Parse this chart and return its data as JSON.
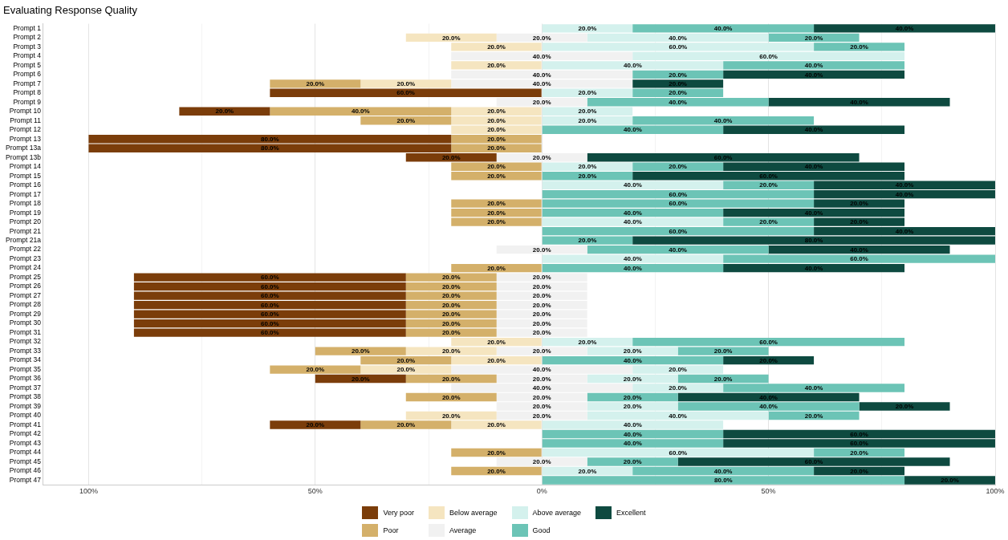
{
  "chart_data": {
    "type": "bar",
    "title": "Evaluating Response Quality",
    "orientation": "horizontal",
    "legend": "bottom",
    "grid": "x",
    "categories": [
      "Prompt 1",
      "Prompt 2",
      "Prompt 3",
      "Prompt 4",
      "Prompt 5",
      "Prompt 6",
      "Prompt 7",
      "Prompt 8",
      "Prompt 9",
      "Prompt 10",
      "Prompt 11",
      "Prompt 12",
      "Prompt 13",
      "Prompt 13a",
      "Prompt 13b",
      "Prompt 14",
      "Prompt 15",
      "Prompt 16",
      "Prompt 17",
      "Prompt 18",
      "Prompt 19",
      "Prompt 20",
      "Prompt 21",
      "Prompt 21a",
      "Prompt 22",
      "Prompt 23",
      "Prompt 24",
      "Prompt 25",
      "Prompt 26",
      "Prompt 27",
      "Prompt 28",
      "Prompt 29",
      "Prompt 30",
      "Prompt 31",
      "Prompt 32",
      "Prompt 33",
      "Prompt 34",
      "Prompt 35",
      "Prompt 36",
      "Prompt 37",
      "Prompt 38",
      "Prompt 39",
      "Prompt 40",
      "Prompt 41",
      "Prompt 42",
      "Prompt 43",
      "Prompt 44",
      "Prompt 45",
      "Prompt 46",
      "Prompt 47"
    ],
    "xlim": [
      -110,
      100
    ],
    "xticks": [
      {
        "value": -100,
        "label": "100%"
      },
      {
        "value": -75,
        "label": null
      },
      {
        "value": -50,
        "label": "50%"
      },
      {
        "value": -25,
        "label": null
      },
      {
        "value": 0,
        "label": "0%"
      },
      {
        "value": 25,
        "label": null
      },
      {
        "value": 50,
        "label": "50%"
      },
      {
        "value": 75,
        "label": null
      },
      {
        "value": 100,
        "label": "100%"
      }
    ],
    "series": [
      {
        "name": "Very poor",
        "color": "#7b3d0a",
        "values": [
          null,
          null,
          null,
          null,
          null,
          null,
          null,
          60,
          null,
          20,
          null,
          null,
          80,
          80,
          20,
          null,
          null,
          null,
          null,
          null,
          null,
          null,
          null,
          null,
          null,
          null,
          null,
          60,
          60,
          60,
          60,
          60,
          60,
          60,
          null,
          null,
          null,
          null,
          20,
          null,
          null,
          null,
          null,
          20,
          null,
          null,
          null,
          null,
          null,
          null
        ],
        "base": [
          null,
          null,
          null,
          null,
          null,
          null,
          null,
          -60,
          null,
          -80,
          null,
          null,
          -100,
          -100,
          -30,
          null,
          null,
          null,
          null,
          null,
          null,
          null,
          null,
          null,
          null,
          null,
          null,
          -90,
          -90,
          -90,
          -90,
          -90,
          -90,
          -90,
          null,
          null,
          null,
          null,
          -50,
          null,
          null,
          null,
          null,
          -60,
          null,
          null,
          null,
          null,
          null,
          null
        ],
        "value_labels": [
          null,
          null,
          null,
          null,
          null,
          null,
          null,
          "60.0%",
          null,
          "20.0%",
          null,
          null,
          "80.0%",
          "80.0%",
          "20.0%",
          null,
          null,
          null,
          null,
          null,
          null,
          null,
          null,
          null,
          null,
          null,
          null,
          "60.0%",
          "60.0%",
          "60.0%",
          "60.0%",
          "60.0%",
          "60.0%",
          "60.0%",
          null,
          null,
          null,
          null,
          "20.0%",
          null,
          null,
          null,
          null,
          "20.0%",
          null,
          null,
          null,
          null,
          null,
          null
        ]
      },
      {
        "name": "Poor",
        "color": "#d4b06a",
        "values": [
          null,
          null,
          null,
          null,
          null,
          null,
          20,
          null,
          null,
          40,
          20,
          null,
          20,
          20,
          null,
          20,
          20,
          null,
          null,
          20,
          20,
          20,
          null,
          null,
          null,
          null,
          20,
          20,
          20,
          20,
          20,
          20,
          20,
          20,
          null,
          20,
          20,
          20,
          20,
          null,
          20,
          null,
          null,
          20,
          null,
          null,
          20,
          null,
          20,
          null
        ],
        "base": [
          null,
          null,
          null,
          null,
          null,
          null,
          -60,
          null,
          null,
          -60,
          -40,
          null,
          -20,
          -20,
          null,
          -20,
          -20,
          null,
          null,
          -20,
          -20,
          -20,
          null,
          null,
          null,
          null,
          -20,
          -30,
          -30,
          -30,
          -30,
          -30,
          -30,
          -30,
          null,
          -50,
          -40,
          -60,
          -30,
          null,
          -30,
          null,
          null,
          -40,
          null,
          null,
          -20,
          null,
          -20,
          null
        ],
        "value_labels": [
          null,
          null,
          null,
          null,
          null,
          null,
          "20.0%",
          null,
          null,
          "40.0%",
          "20.0%",
          null,
          "20.0%",
          "20.0%",
          null,
          "20.0%",
          "20.0%",
          null,
          null,
          "20.0%",
          "20.0%",
          "20.0%",
          null,
          null,
          null,
          null,
          "20.0%",
          "20.0%",
          "20.0%",
          "20.0%",
          "20.0%",
          "20.0%",
          "20.0%",
          "20.0%",
          null,
          "20.0%",
          "20.0%",
          "20.0%",
          "20.0%",
          null,
          "20.0%",
          null,
          null,
          "20.0%",
          null,
          null,
          "20.0%",
          null,
          "20.0%",
          null
        ]
      },
      {
        "name": "Below average",
        "color": "#f5e5c0",
        "values": [
          null,
          20,
          20,
          null,
          20,
          null,
          20,
          null,
          null,
          20,
          20,
          20,
          null,
          null,
          null,
          null,
          null,
          null,
          null,
          null,
          null,
          null,
          null,
          null,
          null,
          null,
          null,
          null,
          null,
          null,
          null,
          null,
          null,
          null,
          20,
          20,
          20,
          20,
          null,
          null,
          null,
          null,
          20,
          20,
          null,
          null,
          null,
          null,
          null,
          null
        ],
        "base": [
          null,
          -30,
          -20,
          null,
          -20,
          null,
          -40,
          null,
          null,
          -20,
          -20,
          -20,
          null,
          null,
          null,
          null,
          null,
          null,
          null,
          null,
          null,
          null,
          null,
          null,
          null,
          null,
          null,
          null,
          null,
          null,
          null,
          null,
          null,
          null,
          -20,
          -30,
          -20,
          -40,
          null,
          null,
          null,
          null,
          -30,
          -20,
          null,
          null,
          null,
          null,
          null,
          null
        ],
        "value_labels": [
          null,
          "20.0%",
          "20.0%",
          null,
          "20.0%",
          null,
          "20.0%",
          null,
          null,
          "20.0%",
          "20.0%",
          "20.0%",
          null,
          null,
          null,
          null,
          null,
          null,
          null,
          null,
          null,
          null,
          null,
          null,
          null,
          null,
          null,
          null,
          null,
          null,
          null,
          null,
          null,
          null,
          "20.0%",
          "20.0%",
          "20.0%",
          "20.0%",
          null,
          null,
          null,
          null,
          "20.0%",
          "20.0%",
          null,
          null,
          null,
          null,
          null,
          null
        ]
      },
      {
        "name": "Average",
        "color": "#f1f1f1",
        "values": [
          null,
          20,
          null,
          40,
          null,
          40,
          40,
          null,
          20,
          null,
          null,
          null,
          null,
          null,
          20,
          null,
          null,
          null,
          null,
          null,
          null,
          null,
          null,
          null,
          20,
          null,
          null,
          20,
          20,
          20,
          20,
          20,
          20,
          20,
          null,
          20,
          null,
          40,
          20,
          40,
          20,
          20,
          20,
          null,
          null,
          null,
          null,
          20,
          null,
          null
        ],
        "base": [
          null,
          -10,
          null,
          -20,
          null,
          -20,
          -20,
          null,
          -10,
          null,
          null,
          null,
          null,
          null,
          -10,
          null,
          null,
          null,
          null,
          null,
          null,
          null,
          null,
          null,
          -10,
          null,
          null,
          -10,
          -10,
          -10,
          -10,
          -10,
          -10,
          -10,
          null,
          -10,
          null,
          -20,
          -10,
          -20,
          -10,
          -10,
          -10,
          null,
          null,
          null,
          null,
          -10,
          null,
          null
        ],
        "value_labels": [
          null,
          "20.0%",
          null,
          "40.0%",
          null,
          "40.0%",
          "40.0%",
          null,
          "20.0%",
          null,
          null,
          null,
          null,
          null,
          "20.0%",
          null,
          null,
          null,
          null,
          null,
          null,
          null,
          null,
          null,
          "20.0%",
          null,
          null,
          "20.0%",
          "20.0%",
          "20.0%",
          "20.0%",
          "20.0%",
          "20.0%",
          "20.0%",
          null,
          "20.0%",
          null,
          "40.0%",
          "20.0%",
          "40.0%",
          "20.0%",
          "20.0%",
          "20.0%",
          null,
          null,
          null,
          null,
          "20.0%",
          null,
          null
        ]
      },
      {
        "name": "Above average",
        "color": "#d4f1ed",
        "values": [
          20,
          40,
          60,
          60,
          40,
          null,
          null,
          20,
          null,
          20,
          20,
          null,
          null,
          null,
          null,
          20,
          null,
          40,
          null,
          null,
          null,
          40,
          null,
          null,
          null,
          40,
          null,
          null,
          null,
          null,
          null,
          null,
          null,
          null,
          20,
          20,
          null,
          20,
          20,
          20,
          null,
          20,
          40,
          40,
          null,
          null,
          60,
          null,
          20,
          null
        ],
        "base": [
          0,
          10,
          0,
          20,
          0,
          null,
          null,
          0,
          null,
          0,
          0,
          null,
          null,
          null,
          null,
          0,
          null,
          0,
          null,
          null,
          null,
          0,
          null,
          null,
          null,
          0,
          null,
          null,
          null,
          null,
          null,
          null,
          null,
          null,
          0,
          10,
          null,
          20,
          10,
          20,
          null,
          10,
          10,
          0,
          null,
          null,
          0,
          null,
          0,
          null
        ],
        "value_labels": [
          "20.0%",
          "40.0%",
          "60.0%",
          "60.0%",
          "40.0%",
          null,
          null,
          "20.0%",
          null,
          "20.0%",
          "20.0%",
          null,
          null,
          null,
          null,
          "20.0%",
          null,
          "40.0%",
          null,
          null,
          null,
          "40.0%",
          null,
          null,
          null,
          "40.0%",
          null,
          null,
          null,
          null,
          null,
          null,
          null,
          null,
          "20.0%",
          "20.0%",
          null,
          "20.0%",
          "20.0%",
          "20.0%",
          null,
          "20.0%",
          "40.0%",
          "40.0%",
          null,
          null,
          "60.0%",
          null,
          "20.0%",
          null
        ]
      },
      {
        "name": "Good",
        "color": "#6cc4b6",
        "values": [
          40,
          20,
          20,
          null,
          40,
          20,
          null,
          20,
          40,
          null,
          40,
          40,
          null,
          null,
          null,
          20,
          20,
          20,
          60,
          60,
          40,
          20,
          60,
          20,
          40,
          60,
          40,
          null,
          null,
          null,
          null,
          null,
          null,
          null,
          60,
          20,
          40,
          null,
          20,
          40,
          20,
          40,
          20,
          null,
          40,
          40,
          20,
          20,
          40,
          80
        ],
        "base": [
          20,
          50,
          60,
          null,
          40,
          20,
          null,
          20,
          10,
          null,
          20,
          0,
          null,
          null,
          null,
          20,
          0,
          40,
          0,
          0,
          0,
          40,
          0,
          0,
          10,
          40,
          0,
          null,
          null,
          null,
          null,
          null,
          null,
          null,
          20,
          30,
          0,
          null,
          30,
          40,
          10,
          30,
          50,
          null,
          0,
          0,
          60,
          10,
          20,
          0
        ],
        "value_labels": [
          "40.0%",
          "20.0%",
          "20.0%",
          null,
          "40.0%",
          "20.0%",
          null,
          "20.0%",
          "40.0%",
          null,
          "40.0%",
          "40.0%",
          null,
          null,
          null,
          "20.0%",
          "20.0%",
          "20.0%",
          "60.0%",
          "60.0%",
          "40.0%",
          "20.0%",
          "60.0%",
          "20.0%",
          "40.0%",
          "60.0%",
          "40.0%",
          null,
          null,
          null,
          null,
          null,
          null,
          null,
          "60.0%",
          "20.0%",
          "40.0%",
          null,
          "20.0%",
          "40.0%",
          "20.0%",
          "40.0%",
          "20.0%",
          null,
          "40.0%",
          "40.0%",
          "20.0%",
          "20.0%",
          "40.0%",
          "80.0%"
        ]
      },
      {
        "name": "Excellent",
        "color": "#0e4a40",
        "values": [
          40,
          null,
          null,
          null,
          null,
          40,
          20,
          null,
          40,
          null,
          null,
          40,
          null,
          null,
          60,
          40,
          60,
          40,
          40,
          20,
          40,
          20,
          40,
          80,
          40,
          null,
          40,
          null,
          null,
          null,
          null,
          null,
          null,
          null,
          null,
          null,
          20,
          null,
          null,
          null,
          40,
          20,
          null,
          null,
          60,
          60,
          null,
          60,
          20,
          20
        ],
        "base": [
          60,
          null,
          null,
          null,
          null,
          40,
          20,
          null,
          50,
          null,
          null,
          40,
          null,
          null,
          10,
          40,
          20,
          60,
          60,
          60,
          40,
          60,
          60,
          20,
          50,
          null,
          40,
          null,
          null,
          null,
          null,
          null,
          null,
          null,
          null,
          null,
          40,
          null,
          null,
          null,
          30,
          70,
          null,
          null,
          40,
          40,
          null,
          30,
          60,
          80
        ],
        "value_labels": [
          "40.0%",
          null,
          null,
          null,
          null,
          "40.0%",
          "20.0%",
          null,
          "40.0%",
          null,
          null,
          "40.0%",
          null,
          null,
          "60.0%",
          "40.0%",
          "60.0%",
          "40.0%",
          "40.0%",
          "20.0%",
          "40.0%",
          "20.0%",
          "40.0%",
          "80.0%",
          "40.0%",
          null,
          "40.0%",
          null,
          null,
          null,
          null,
          null,
          null,
          null,
          null,
          null,
          "20.0%",
          null,
          null,
          null,
          "40.0%",
          "20.0%",
          null,
          null,
          "60.0%",
          "60.0%",
          null,
          "60.0%",
          "20.0%",
          "20.0%"
        ]
      }
    ]
  }
}
